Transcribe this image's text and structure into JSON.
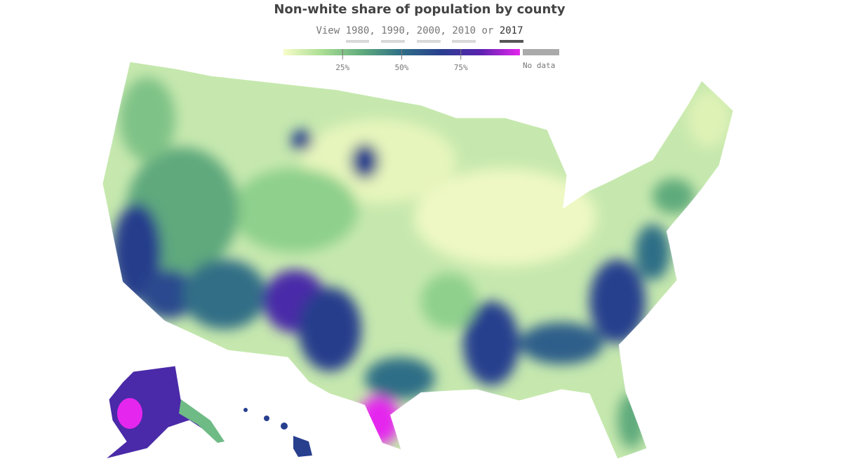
{
  "header": {
    "title": "Non-white share of population by county"
  },
  "controls": {
    "prefix": "View",
    "years": [
      "1980",
      "1990",
      "2000",
      "2010",
      "2017"
    ],
    "separator": ",",
    "conjunction": "or",
    "selected": 4
  },
  "legend": {
    "range": [
      0,
      100
    ],
    "ticks": [
      {
        "value": 25,
        "label": "25%"
      },
      {
        "value": 50,
        "label": "50%"
      },
      {
        "value": 75,
        "label": "75%"
      }
    ],
    "colors": [
      "#f7fcc8",
      "#a8dd92",
      "#5faa7c",
      "#2f6e86",
      "#283f8e",
      "#5b22b0",
      "#e526ee"
    ],
    "no_data": "No data",
    "no_data_color": "#aaaaaa"
  }
}
